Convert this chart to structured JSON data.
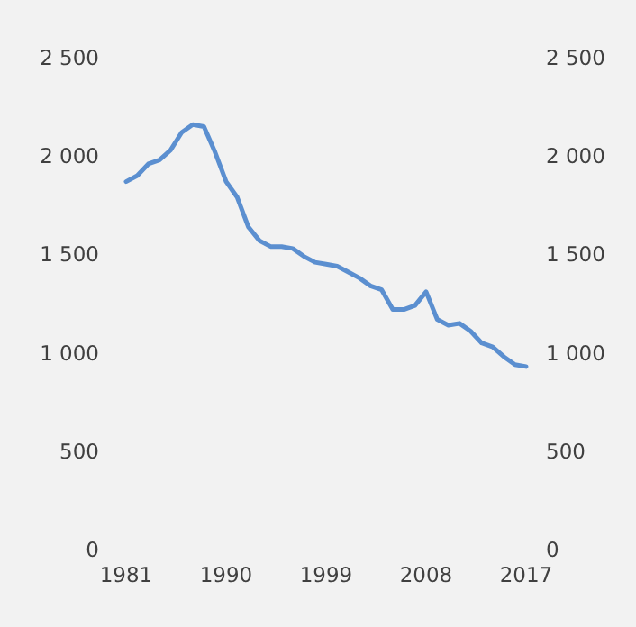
{
  "chart_data": {
    "type": "line",
    "x": [
      1981,
      1982,
      1983,
      1984,
      1985,
      1986,
      1987,
      1988,
      1989,
      1990,
      1991,
      1992,
      1993,
      1994,
      1995,
      1996,
      1997,
      1998,
      1999,
      2000,
      2001,
      2002,
      2003,
      2004,
      2005,
      2006,
      2007,
      2008,
      2009,
      2010,
      2011,
      2012,
      2013,
      2014,
      2015,
      2016,
      2017
    ],
    "series": [
      {
        "color": "#5b8fd0",
        "values": [
          1870,
          1900,
          1960,
          1980,
          2030,
          2120,
          2160,
          2150,
          2020,
          1870,
          1790,
          1640,
          1570,
          1540,
          1540,
          1530,
          1490,
          1460,
          1450,
          1440,
          1410,
          1380,
          1340,
          1320,
          1220,
          1220,
          1240,
          1310,
          1170,
          1140,
          1150,
          1110,
          1050,
          1030,
          980,
          940,
          930
        ]
      }
    ],
    "xlim": [
      1981,
      2017
    ],
    "xticks": [
      1981,
      1990,
      1999,
      2008,
      2017
    ],
    "ylim": [
      0,
      2500
    ],
    "yticks": [
      0,
      500,
      {
        "value": 1000,
        "label": "1 000"
      },
      {
        "value": 1500,
        "label": "1 500"
      },
      {
        "value": 2000,
        "label": "2 000"
      },
      {
        "value": 2500,
        "label": "2 500"
      }
    ],
    "y2lim": [
      0,
      2500
    ],
    "y2ticks": [
      0,
      500,
      {
        "value": 1000,
        "label": "1 000"
      },
      {
        "value": 1500,
        "label": "1 500"
      },
      {
        "value": 2000,
        "label": "2 000"
      },
      {
        "value": 2500,
        "label": "2 500"
      }
    ],
    "grid": false,
    "marker": "none",
    "line_style": "solid"
  }
}
